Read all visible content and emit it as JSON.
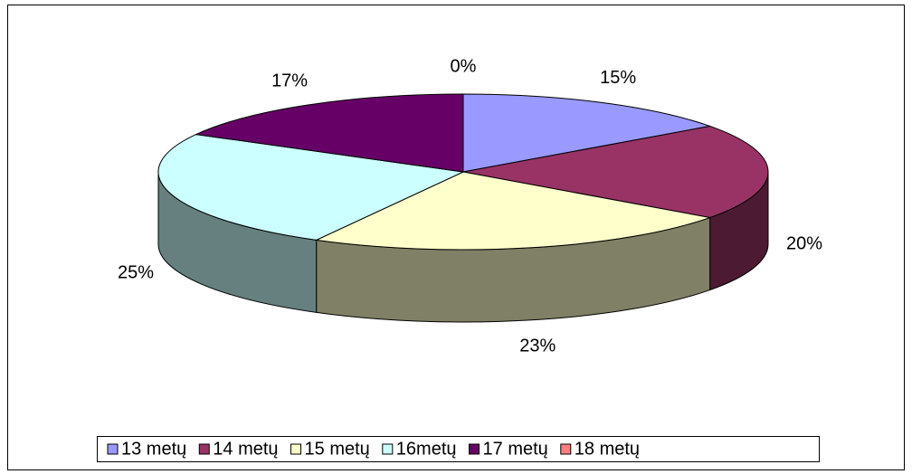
{
  "chart_data": {
    "type": "pie3d",
    "categories": [
      "13 metų",
      "14 metų",
      "15 metų",
      "16metų",
      "17 metų",
      "18 metų"
    ],
    "values": [
      15,
      20,
      23,
      25,
      17,
      0
    ],
    "value_labels": [
      "15%",
      "20%",
      "23%",
      "25%",
      "17%",
      "0%"
    ],
    "colors": [
      "#9999ff",
      "#993366",
      "#ffffcc",
      "#ccffff",
      "#660066",
      "#ff8080"
    ],
    "legend": "bottom"
  }
}
